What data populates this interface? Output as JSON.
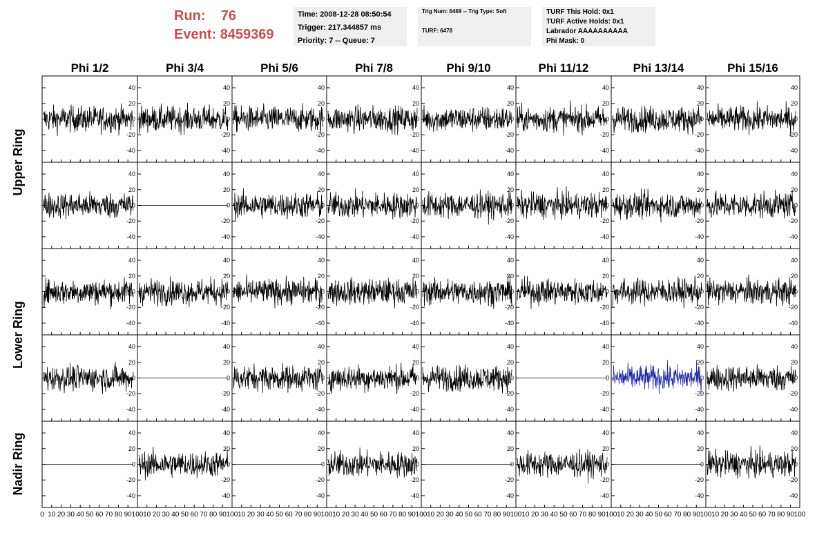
{
  "run_label": "Run:",
  "run_value": "76",
  "event_label": "Event:",
  "event_value": "8459369",
  "info": {
    "time": "Time: 2008-12-28 08:50:54",
    "trigger": "Trigger: 217.344857 ms",
    "priority": "Priority: 7 -- Queue: 7",
    "trig_num": "Trig Num: 6469 -- Trig Type: Soft",
    "turf": "TURF: 6478",
    "turf_hold": "TURF This Hold: 0x1",
    "turf_active": "TURF Active Holds: 0x1",
    "labrador": "Labrador AAAAAAAAAA",
    "phi_mask": "Phi Mask: 0"
  },
  "colors": {
    "trace": "#000000",
    "highlight_trace": "#1f2aa0",
    "header_text": "#c0504d",
    "info_bg": "#efefef"
  },
  "chart_data": {
    "type": "line",
    "columns": [
      "Phi 1/2",
      "Phi 3/4",
      "Phi 5/6",
      "Phi 7/8",
      "Phi 9/10",
      "Phi 11/12",
      "Phi 13/14",
      "Phi 15/16"
    ],
    "rings": [
      "Upper Ring",
      "Lower Ring",
      "Nadir Ring"
    ],
    "x_ticks": [
      "0",
      "10",
      "20",
      "30",
      "40",
      "50",
      "60",
      "70",
      "80",
      "90",
      "100"
    ],
    "y_ticks": [
      "40",
      "20",
      "0",
      "-20",
      "-40"
    ],
    "xlim": [
      0,
      100
    ],
    "ylim": [
      -55,
      55
    ],
    "flat_panels": [
      [
        1,
        1
      ],
      [
        3,
        1
      ],
      [
        3,
        5
      ],
      [
        4,
        0
      ],
      [
        4,
        2
      ],
      [
        4,
        4
      ],
      [
        4,
        6
      ]
    ],
    "highlight_panels": [
      [
        3,
        6
      ]
    ],
    "panel_amplitude": 14
  }
}
